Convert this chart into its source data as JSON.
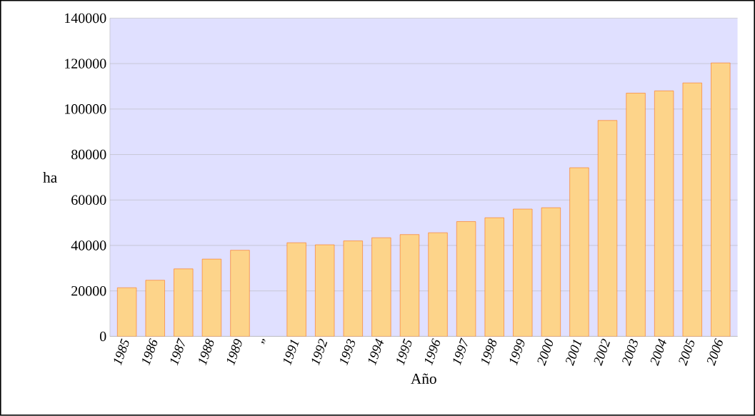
{
  "chart_data": {
    "type": "bar",
    "xlabel": "Año",
    "ylabel": "ha",
    "categories": [
      "1985",
      "1986",
      "1987",
      "1988",
      "1989",
      "”",
      "1991",
      "1992",
      "1993",
      "1994",
      "1995",
      "1996",
      "1997",
      "1998",
      "1999",
      "2000",
      "2001",
      "2002",
      "2003",
      "2004",
      "2005",
      "2006"
    ],
    "values": [
      21400,
      24700,
      29700,
      34000,
      37900,
      null,
      41200,
      40300,
      42000,
      43400,
      44800,
      45600,
      50500,
      52200,
      56000,
      56600,
      74200,
      95000,
      107000,
      108000,
      111500,
      120300
    ],
    "color": "#fdd48a",
    "ylim": [
      0,
      140000
    ],
    "yticks": [
      0,
      20000,
      40000,
      60000,
      80000,
      100000,
      120000,
      140000
    ],
    "grid": "y"
  }
}
